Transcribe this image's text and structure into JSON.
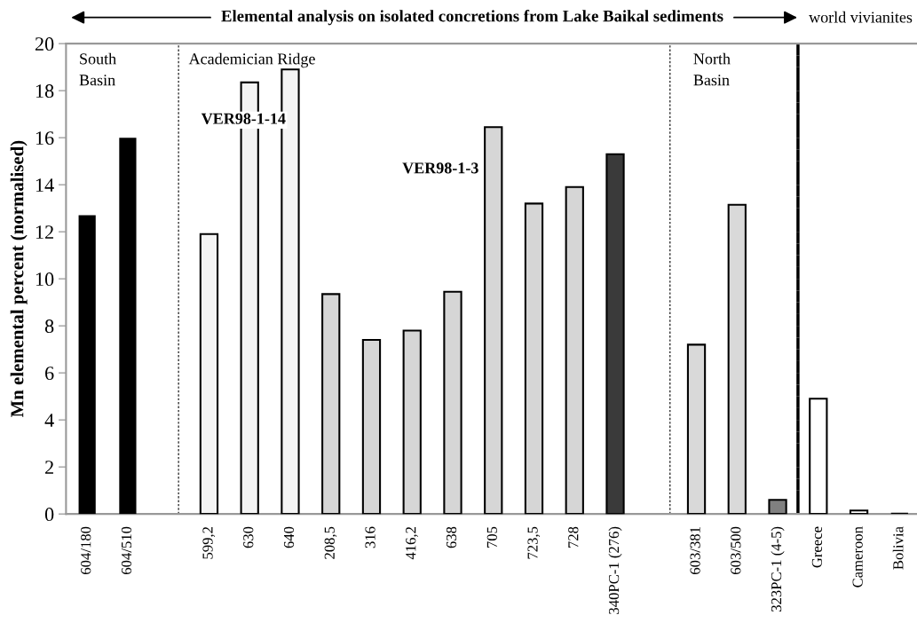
{
  "chart_data": {
    "type": "bar",
    "title": "Elemental analysis on isolated concretions from Lake Baikal sediments",
    "ylabel": "Mn elemental percent (normalised)",
    "categories": [
      "604/180",
      "604/510",
      null,
      "599,2",
      "630",
      "640",
      "208,5",
      "316",
      "416,2",
      "638",
      "705",
      "723,5",
      "728",
      "340PC-1 (276)",
      null,
      "603/381",
      "603/500",
      "323PC-1 (4-5)",
      "Greece",
      "Cameroon",
      "Bolivia"
    ],
    "values": [
      12.7,
      16.0,
      null,
      11.9,
      18.35,
      18.9,
      9.35,
      7.4,
      7.8,
      9.45,
      16.45,
      13.2,
      13.9,
      15.3,
      null,
      7.2,
      13.15,
      0.6,
      4.9,
      0.15,
      0.05
    ],
    "colors": [
      "#000000",
      "#000000",
      "#ffffff",
      "#f4f4f4",
      "#f4f4f4",
      "#f4f4f4",
      "#d6d6d6",
      "#d6d6d6",
      "#d6d6d6",
      "#d6d6d6",
      "#d6d6d6",
      "#d6d6d6",
      "#d6d6d6",
      "#3a3a3a",
      "#ffffff",
      "#d9d9d9",
      "#d9d9d9",
      "#808080",
      "#ffffff",
      "#ffffff",
      "#000000"
    ],
    "ylim": [
      0,
      20
    ],
    "yticks": [
      0,
      2,
      4,
      6,
      8,
      10,
      12,
      14,
      16,
      18,
      20
    ],
    "annotations": [
      "South\nBasin",
      "Academician Ridge",
      "North\nBasin",
      "VER98-1-14",
      "VER98-1-3",
      "world vivianites"
    ],
    "grid": false,
    "legend": false
  }
}
